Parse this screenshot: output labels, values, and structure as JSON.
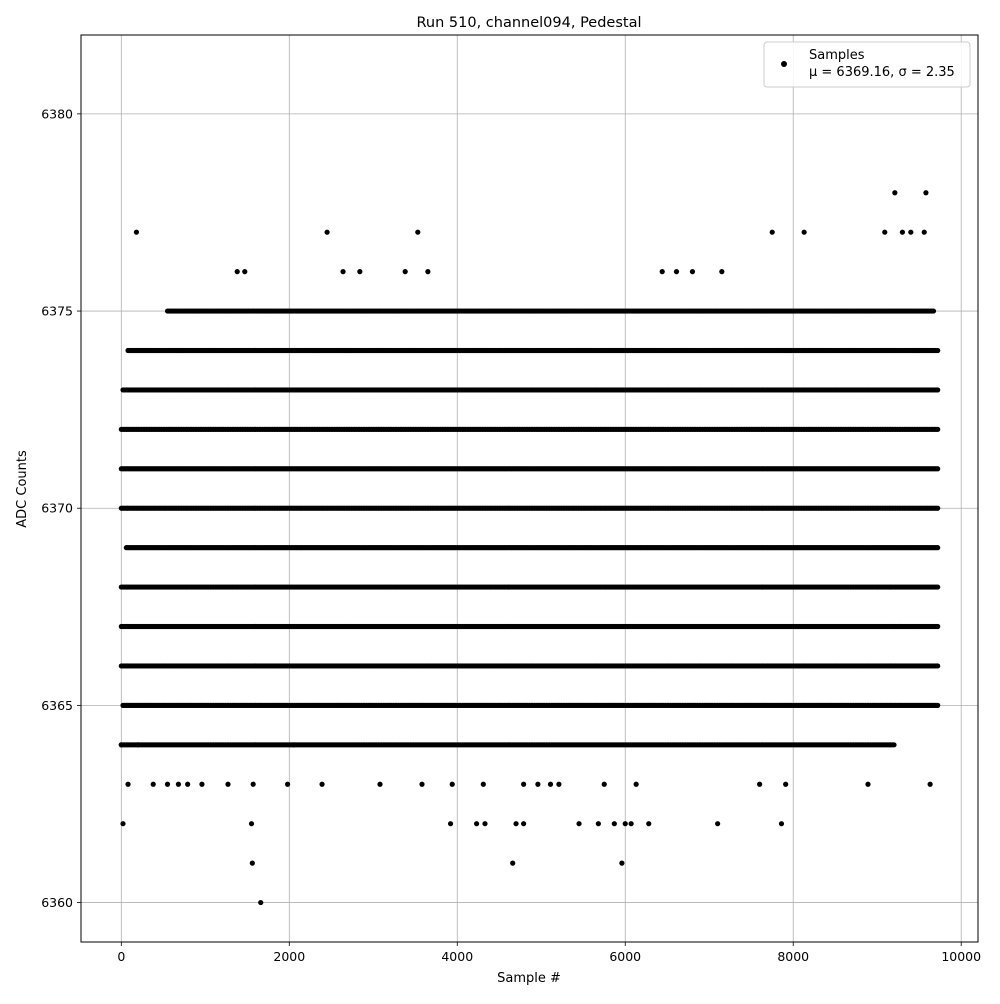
{
  "chart_data": {
    "type": "scatter",
    "title": "Run 510, channel094, Pedestal",
    "xlabel": "Sample #",
    "ylabel": "ADC Counts",
    "xlim": [
      -480,
      10200
    ],
    "ylim": [
      6359.0,
      6382.0
    ],
    "x_ticks": [
      0,
      2000,
      4000,
      6000,
      8000,
      10000
    ],
    "y_ticks": [
      6360,
      6365,
      6370,
      6375,
      6380
    ],
    "grid": true,
    "legend": {
      "placement": "top-right",
      "entries": [
        {
          "label": "Samples",
          "sublabel": "μ = 6369.16, σ = 2.35"
        }
      ]
    },
    "series": [
      {
        "name": "Samples",
        "color": "#000000",
        "x_range": [
          0,
          9720
        ],
        "n_samples": 9720,
        "level_x_ranges": [
          {
            "y": 6367,
            "x_range": [
              0,
              9720
            ]
          },
          {
            "y": 6368,
            "x_range": [
              0,
              9720
            ]
          },
          {
            "y": 6369,
            "x_range": [
              60,
              9720
            ]
          },
          {
            "y": 6370,
            "x_range": [
              0,
              9720
            ]
          },
          {
            "y": 6371,
            "x_range": [
              0,
              9720
            ]
          },
          {
            "y": 6372,
            "x_range": [
              0,
              9720
            ]
          },
          {
            "y": 6366,
            "x_range": [
              0,
              9720
            ]
          },
          {
            "y": 6373,
            "x_range": [
              20,
              9720
            ]
          },
          {
            "y": 6365,
            "x_range": [
              20,
              9720
            ]
          },
          {
            "y": 6374,
            "x_range": [
              80,
              9720
            ]
          },
          {
            "y": 6364,
            "x_range": [
              0,
              9200
            ]
          },
          {
            "y": 6375,
            "x_range": [
              550,
              9680
            ]
          }
        ],
        "points": [
          [
            0,
            6364
          ],
          [
            20,
            6362
          ],
          [
            80,
            6363
          ],
          [
            180,
            6377
          ],
          [
            200,
            6364
          ],
          [
            380,
            6363
          ],
          [
            550,
            6363
          ],
          [
            680,
            6363
          ],
          [
            790,
            6363
          ],
          [
            960,
            6363
          ],
          [
            1270,
            6363
          ],
          [
            1380,
            6376
          ],
          [
            1470,
            6376
          ],
          [
            1550,
            6362
          ],
          [
            1560,
            6361
          ],
          [
            1570,
            6363
          ],
          [
            1660,
            6360
          ],
          [
            1980,
            6363
          ],
          [
            2050,
            6364
          ],
          [
            2390,
            6363
          ],
          [
            2450,
            6377
          ],
          [
            2640,
            6376
          ],
          [
            2840,
            6376
          ],
          [
            3080,
            6363
          ],
          [
            3380,
            6376
          ],
          [
            3530,
            6377
          ],
          [
            3580,
            6363
          ],
          [
            3650,
            6376
          ],
          [
            3920,
            6362
          ],
          [
            3940,
            6363
          ],
          [
            4230,
            6362
          ],
          [
            4310,
            6363
          ],
          [
            4330,
            6362
          ],
          [
            4660,
            6361
          ],
          [
            4700,
            6362
          ],
          [
            4790,
            6362
          ],
          [
            4790,
            6363
          ],
          [
            4960,
            6363
          ],
          [
            5110,
            6363
          ],
          [
            5210,
            6363
          ],
          [
            5450,
            6362
          ],
          [
            5680,
            6362
          ],
          [
            5750,
            6363
          ],
          [
            5870,
            6362
          ],
          [
            5960,
            6361
          ],
          [
            6000,
            6362
          ],
          [
            6070,
            6362
          ],
          [
            6130,
            6363
          ],
          [
            6280,
            6362
          ],
          [
            6440,
            6376
          ],
          [
            6610,
            6376
          ],
          [
            6800,
            6376
          ],
          [
            7100,
            6362
          ],
          [
            7150,
            6376
          ],
          [
            7600,
            6363
          ],
          [
            7750,
            6377
          ],
          [
            7860,
            6362
          ],
          [
            7910,
            6363
          ],
          [
            8130,
            6377
          ],
          [
            8890,
            6363
          ],
          [
            9090,
            6377
          ],
          [
            9210,
            6378
          ],
          [
            9300,
            6377
          ],
          [
            9400,
            6377
          ],
          [
            9560,
            6377
          ],
          [
            9580,
            6378
          ],
          [
            9630,
            6363
          ]
        ]
      }
    ]
  }
}
